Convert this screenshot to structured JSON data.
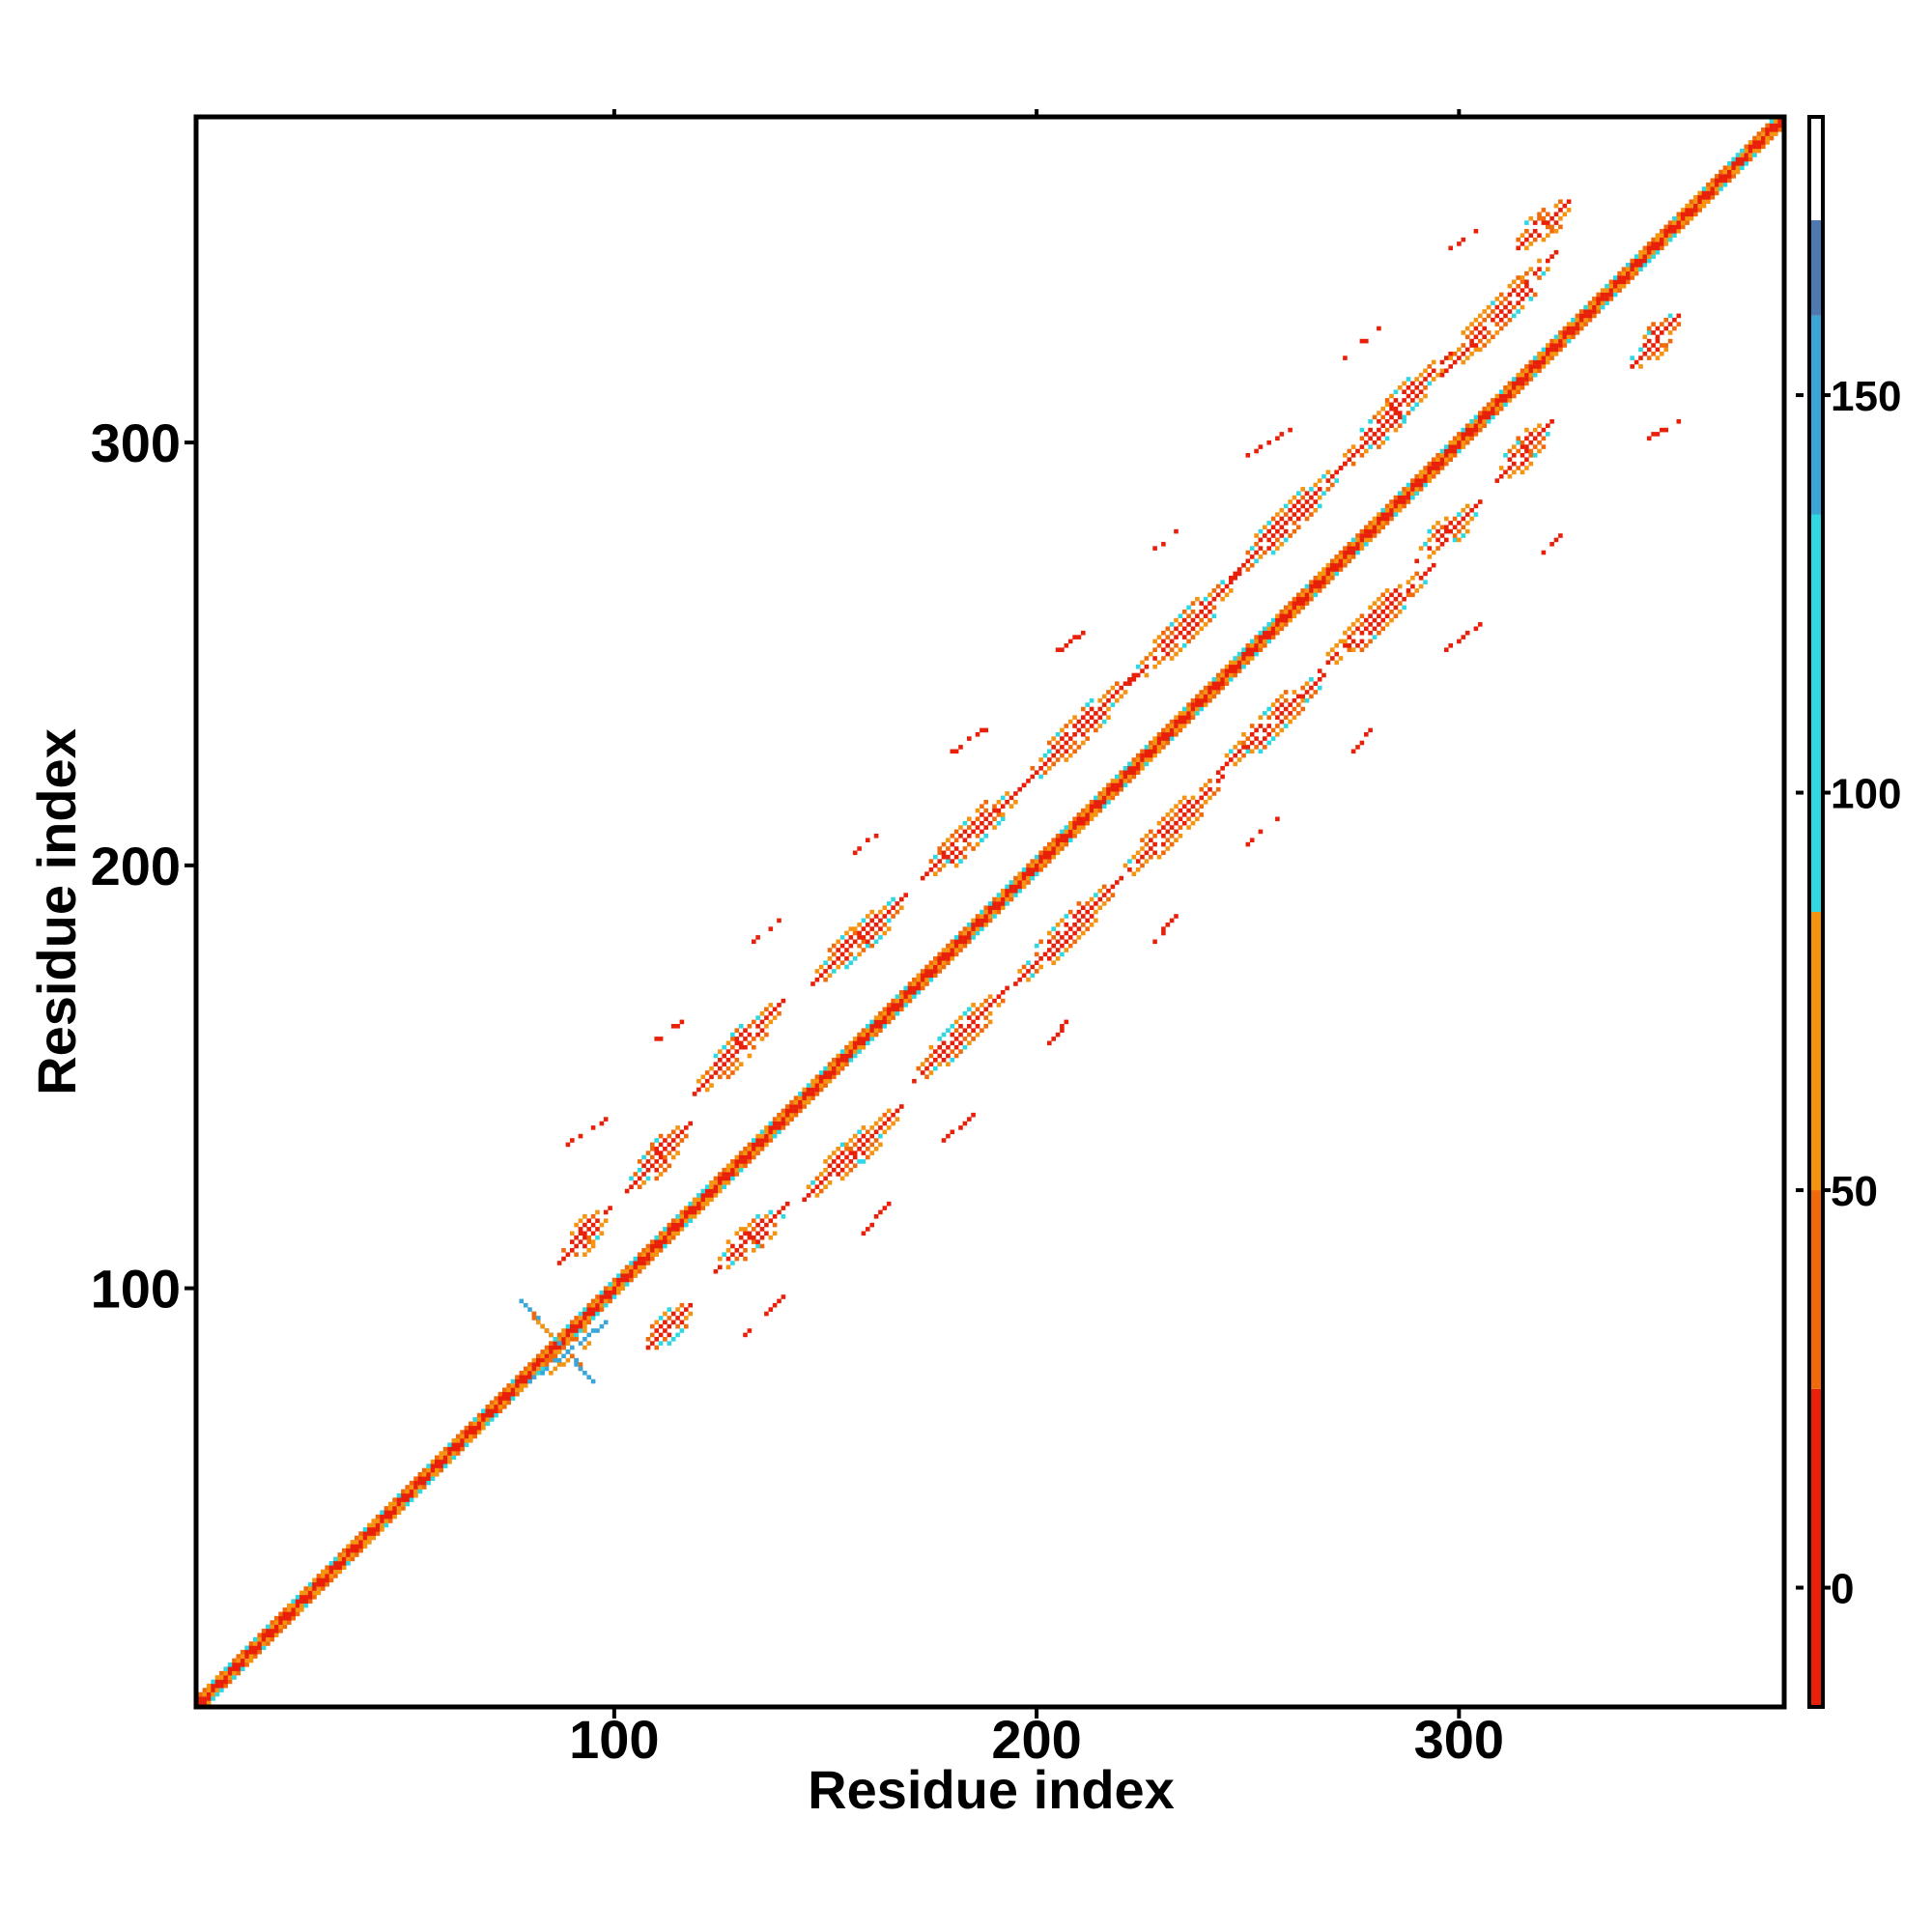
{
  "chart_data": {
    "type": "heatmap",
    "title": "",
    "xlabel": "Residue index",
    "ylabel": "Residue index",
    "xlim": [
      1,
      377
    ],
    "ylim": [
      1,
      377
    ],
    "x_ticks": [
      100,
      200,
      300
    ],
    "y_ticks": [
      100,
      200,
      300
    ],
    "grid": false,
    "colorbar": {
      "range": [
        -15,
        185
      ],
      "ticks": [
        0,
        50,
        100,
        150
      ],
      "bands": [
        {
          "from": -15,
          "to": 25,
          "color": "#e8200a"
        },
        {
          "from": 25,
          "to": 50,
          "color": "#f06a0c"
        },
        {
          "from": 50,
          "to": 85,
          "color": "#f59410"
        },
        {
          "from": 85,
          "to": 135,
          "color": "#2fd7e0"
        },
        {
          "from": 135,
          "to": 160,
          "color": "#3aa6d8"
        },
        {
          "from": 160,
          "to": 172,
          "color": "#4d79b0"
        },
        {
          "from": 172,
          "to": 185,
          "color": "#ffffff"
        }
      ]
    },
    "diagonal": {
      "from": 1,
      "to": 377,
      "value": 60
    },
    "crossing_features": [
      {
        "x": [
          78,
          95
        ],
        "y": [
          97,
          78
        ],
        "value": 145
      },
      {
        "x": [
          80,
          98
        ],
        "y": [
          78,
          92
        ],
        "value": 145
      }
    ],
    "contact_bands": [
      {
        "x": [
          87,
          99
        ],
        "y": [
          106,
          119
        ],
        "value": 10
      },
      {
        "x": [
          103,
          118
        ],
        "y": [
          123,
          139
        ],
        "value": 10
      },
      {
        "x": [
          119,
          140
        ],
        "y": [
          146,
          168
        ],
        "value": 10
      },
      {
        "x": [
          147,
          169
        ],
        "y": [
          172,
          193
        ],
        "value": 10
      },
      {
        "x": [
          172,
          197
        ],
        "y": [
          196,
          219
        ],
        "value": 10
      },
      {
        "x": [
          197,
          223
        ],
        "y": [
          219,
          245
        ],
        "value": 10
      },
      {
        "x": [
          222,
          248
        ],
        "y": [
          243,
          269
        ],
        "value": 10
      },
      {
        "x": [
          246,
          273
        ],
        "y": [
          268,
          295
        ],
        "value": 10
      },
      {
        "x": [
          271,
          298
        ],
        "y": [
          293,
          321
        ],
        "value": 10
      },
      {
        "x": [
          296,
          323
        ],
        "y": [
          316,
          345
        ],
        "value": 10
      },
      {
        "x": [
          314,
          326
        ],
        "y": [
          346,
          357
        ],
        "value": 10
      },
      {
        "x": [
          108,
          118
        ],
        "y": [
          86,
          96
        ],
        "value": 10
      },
      {
        "x": [
          124,
          141
        ],
        "y": [
          104,
          120
        ],
        "value": 10
      },
      {
        "x": [
          145,
          168
        ],
        "y": [
          121,
          143
        ],
        "value": 10
      },
      {
        "x": [
          171,
          193
        ],
        "y": [
          149,
          171
        ],
        "value": 10
      },
      {
        "x": [
          195,
          219
        ],
        "y": [
          172,
          196
        ],
        "value": 10
      },
      {
        "x": [
          220,
          244
        ],
        "y": [
          197,
          221
        ],
        "value": 10
      },
      {
        "x": [
          243,
          269
        ],
        "y": [
          222,
          246
        ],
        "value": 10
      },
      {
        "x": [
          267,
          294
        ],
        "y": [
          246,
          271
        ],
        "value": 10
      },
      {
        "x": [
          290,
          305
        ],
        "y": [
          272,
          286
        ],
        "value": 10
      },
      {
        "x": [
          309,
          322
        ],
        "y": [
          291,
          305
        ],
        "value": 10
      },
      {
        "x": [
          341,
          352
        ],
        "y": [
          318,
          330
        ],
        "value": 10
      }
    ],
    "faint_streaks": [
      {
        "x": [
          89,
          98
        ],
        "y": [
          134,
          140
        ],
        "value": 5
      },
      {
        "x": [
          108,
          117
        ],
        "y": [
          157,
          164
        ],
        "value": 5
      },
      {
        "x": [
          132,
          140
        ],
        "y": [
          181,
          188
        ],
        "value": 5
      },
      {
        "x": [
          157,
          166
        ],
        "y": [
          203,
          211
        ],
        "value": 5
      },
      {
        "x": [
          179,
          189
        ],
        "y": [
          226,
          233
        ],
        "value": 5
      },
      {
        "x": [
          203,
          212
        ],
        "y": [
          249,
          256
        ],
        "value": 5
      },
      {
        "x": [
          227,
          236
        ],
        "y": [
          274,
          281
        ],
        "value": 5
      },
      {
        "x": [
          250,
          260
        ],
        "y": [
          297,
          303
        ],
        "value": 5
      },
      {
        "x": [
          273,
          281
        ],
        "y": [
          320,
          327
        ],
        "value": 5
      },
      {
        "x": [
          297,
          305
        ],
        "y": [
          345,
          351
        ],
        "value": 5
      },
      {
        "x": [
          131,
          140
        ],
        "y": [
          89,
          98
        ],
        "value": 5
      },
      {
        "x": [
          158,
          165
        ],
        "y": [
          112,
          120
        ],
        "value": 5
      },
      {
        "x": [
          178,
          185
        ],
        "y": [
          135,
          141
        ],
        "value": 5
      },
      {
        "x": [
          203,
          209
        ],
        "y": [
          158,
          165
        ],
        "value": 5
      },
      {
        "x": [
          227,
          233
        ],
        "y": [
          181,
          188
        ],
        "value": 5
      },
      {
        "x": [
          250,
          258
        ],
        "y": [
          205,
          212
        ],
        "value": 5
      },
      {
        "x": [
          275,
          281
        ],
        "y": [
          227,
          234
        ],
        "value": 5
      },
      {
        "x": [
          297,
          305
        ],
        "y": [
          251,
          257
        ],
        "value": 5
      },
      {
        "x": [
          320,
          326
        ],
        "y": [
          274,
          280
        ],
        "value": 5
      },
      {
        "x": [
          345,
          352
        ],
        "y": [
          301,
          305
        ],
        "value": 5
      }
    ]
  }
}
